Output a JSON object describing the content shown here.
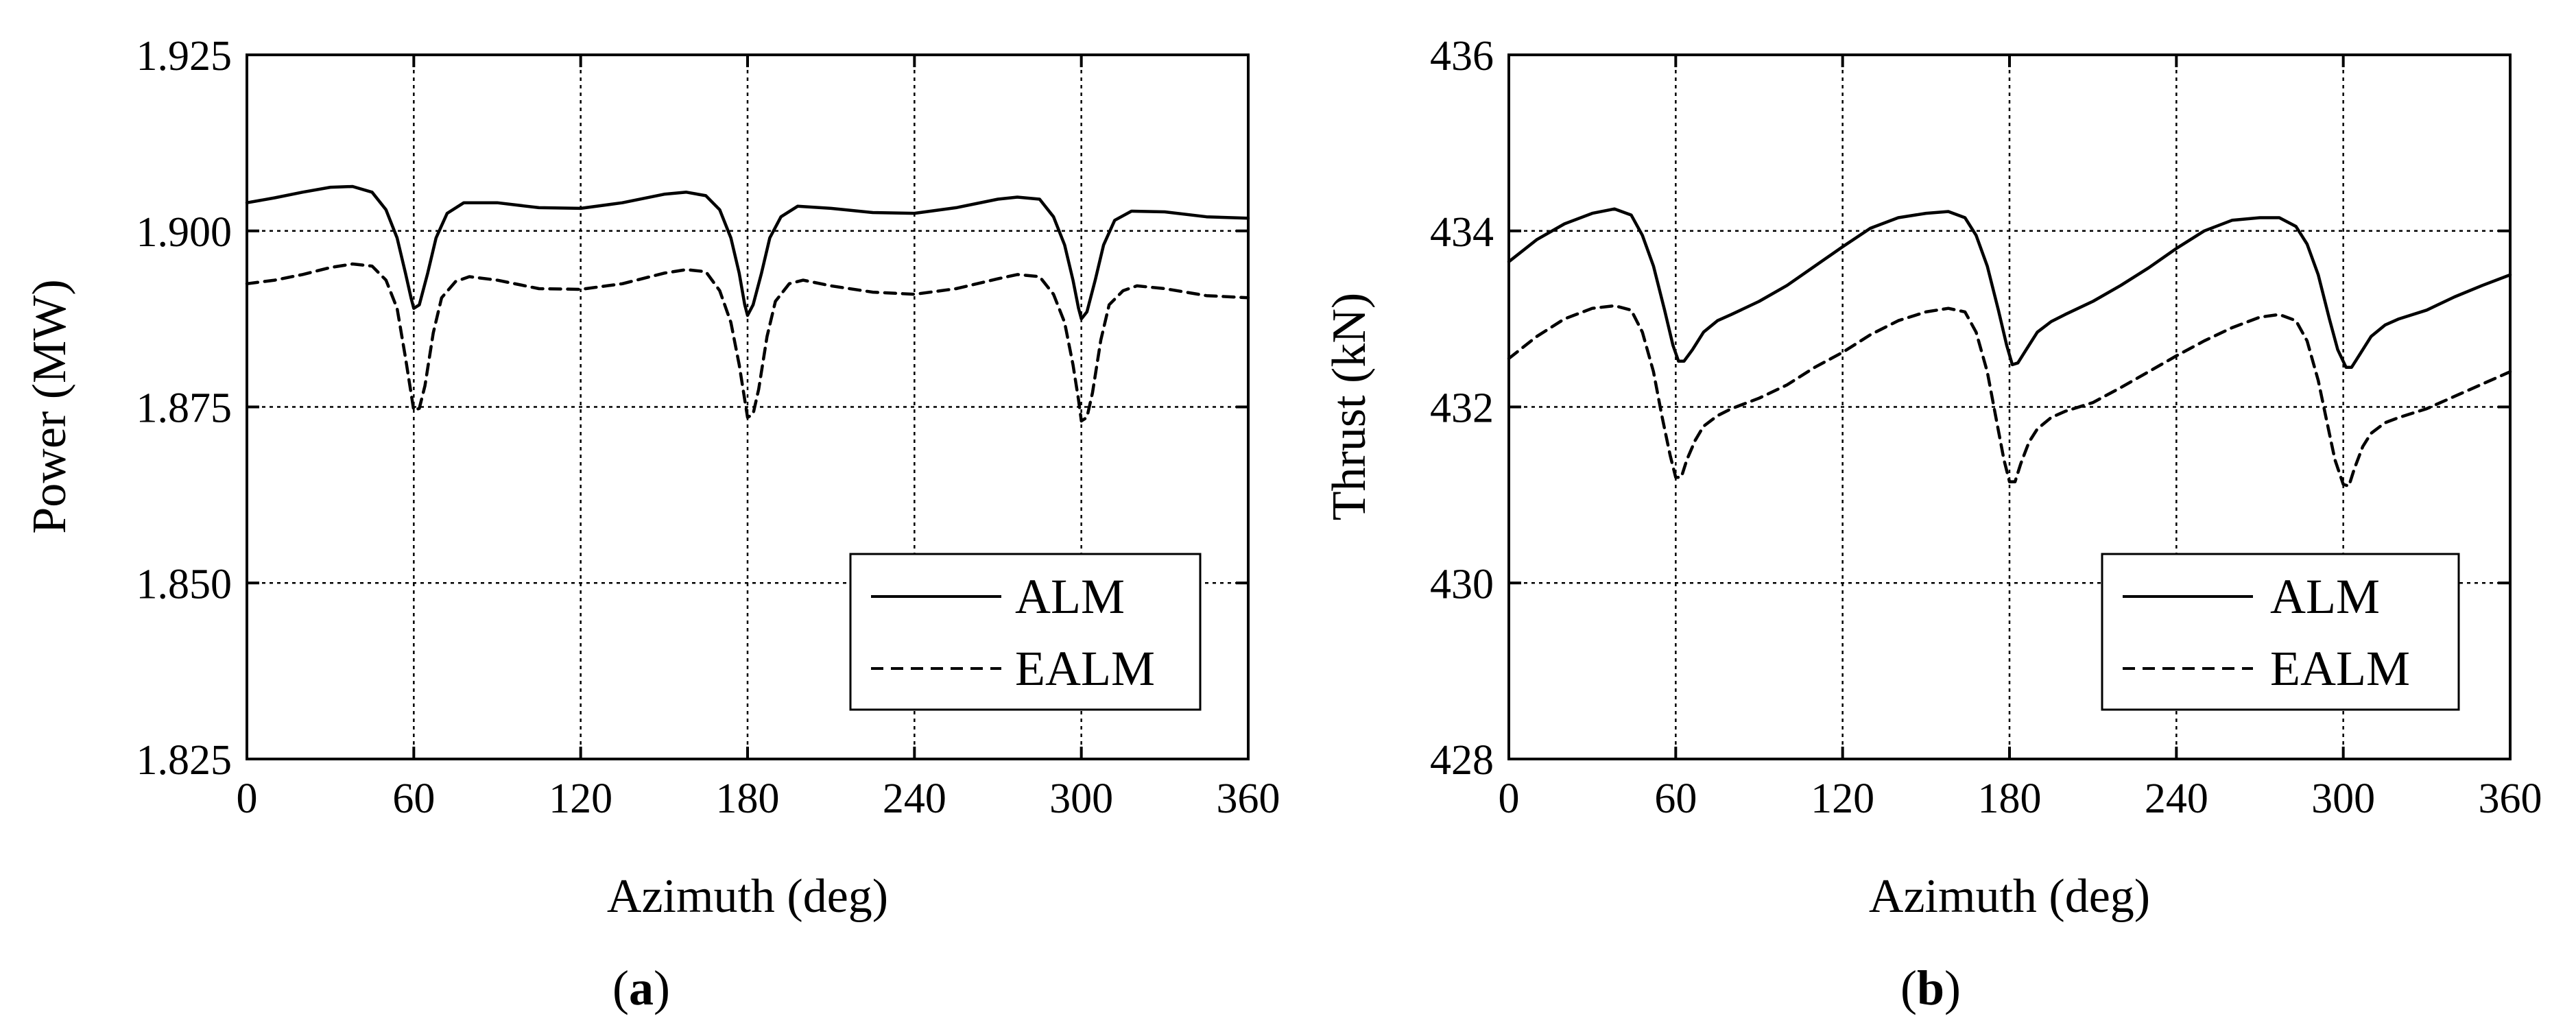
{
  "chart_data": [
    {
      "type": "line",
      "panel_label": "a",
      "title": "",
      "xlabel": "Azimuth (deg)",
      "ylabel": "Power (MW)",
      "xlim": [
        0,
        360
      ],
      "ylim": [
        1.825,
        1.925
      ],
      "xticks": [
        0,
        60,
        120,
        180,
        240,
        300,
        360
      ],
      "xtick_labels": [
        "0",
        "60",
        "120",
        "180",
        "240",
        "300",
        "360"
      ],
      "yticks": [
        1.825,
        1.85,
        1.875,
        1.9,
        1.925
      ],
      "ytick_labels": [
        "1.825",
        "1.850",
        "1.875",
        "1.900",
        "1.925"
      ],
      "grid": true,
      "legend_position": "bottom-right",
      "series": [
        {
          "name": "ALM",
          "style": "solid",
          "x": [
            0,
            10,
            20,
            30,
            38,
            45,
            50,
            54,
            57,
            59,
            60,
            62,
            65,
            68,
            72,
            78,
            90,
            105,
            120,
            135,
            150,
            158,
            165,
            170,
            174,
            177,
            179,
            180,
            182,
            185,
            188,
            192,
            198,
            210,
            225,
            240,
            255,
            270,
            277,
            285,
            290,
            294,
            297,
            299,
            300,
            302,
            305,
            308,
            312,
            318,
            330,
            345,
            360
          ],
          "values": [
            1.904,
            1.9047,
            1.9055,
            1.9062,
            1.9063,
            1.9055,
            1.903,
            1.899,
            1.894,
            1.8905,
            1.889,
            1.8895,
            1.894,
            1.899,
            1.9025,
            1.904,
            1.904,
            1.9033,
            1.9032,
            1.904,
            1.9052,
            1.9055,
            1.905,
            1.903,
            1.899,
            1.894,
            1.8895,
            1.888,
            1.8895,
            1.894,
            1.899,
            1.902,
            1.9035,
            1.9032,
            1.9026,
            1.9025,
            1.9033,
            1.9045,
            1.9048,
            1.9045,
            1.902,
            1.898,
            1.893,
            1.889,
            1.8875,
            1.8885,
            1.893,
            1.898,
            1.9015,
            1.9028,
            1.9027,
            1.902,
            1.9018
          ]
        },
        {
          "name": "EALM",
          "style": "dashed",
          "x": [
            0,
            10,
            20,
            30,
            38,
            45,
            50,
            54,
            57,
            59,
            60,
            62,
            64,
            67,
            70,
            75,
            80,
            90,
            105,
            120,
            135,
            150,
            158,
            165,
            170,
            174,
            177,
            179,
            180,
            182,
            184,
            187,
            190,
            195,
            200,
            210,
            225,
            240,
            255,
            270,
            277,
            285,
            290,
            294,
            297,
            299,
            300,
            302,
            304,
            307,
            310,
            315,
            320,
            330,
            345,
            360
          ],
          "values": [
            1.8925,
            1.893,
            1.8938,
            1.8948,
            1.8953,
            1.895,
            1.893,
            1.889,
            1.882,
            1.877,
            1.8745,
            1.8748,
            1.878,
            1.8855,
            1.8905,
            1.8928,
            1.8935,
            1.893,
            1.8918,
            1.8917,
            1.8925,
            1.894,
            1.8945,
            1.8942,
            1.8915,
            1.887,
            1.881,
            1.876,
            1.8735,
            1.874,
            1.8775,
            1.885,
            1.89,
            1.8925,
            1.893,
            1.8922,
            1.8913,
            1.891,
            1.8918,
            1.8932,
            1.8938,
            1.8935,
            1.891,
            1.887,
            1.881,
            1.876,
            1.873,
            1.8735,
            1.877,
            1.8845,
            1.8895,
            1.8915,
            1.8922,
            1.8918,
            1.8908,
            1.8905
          ]
        }
      ]
    },
    {
      "type": "line",
      "panel_label": "b",
      "title": "",
      "xlabel": "Azimuth (deg)",
      "ylabel": "Thrust (kN)",
      "xlim": [
        0,
        360
      ],
      "ylim": [
        428,
        436
      ],
      "xticks": [
        0,
        60,
        120,
        180,
        240,
        300,
        360
      ],
      "xtick_labels": [
        "0",
        "60",
        "120",
        "180",
        "240",
        "300",
        "360"
      ],
      "yticks": [
        428,
        430,
        432,
        434,
        436
      ],
      "ytick_labels": [
        "428",
        "430",
        "432",
        "434",
        "436"
      ],
      "grid": true,
      "legend_position": "bottom-right",
      "series": [
        {
          "name": "ALM",
          "style": "solid",
          "x": [
            0,
            10,
            20,
            30,
            38,
            44,
            48,
            52,
            56,
            59,
            61,
            63,
            66,
            70,
            75,
            80,
            90,
            100,
            110,
            120,
            130,
            140,
            150,
            158,
            164,
            168,
            172,
            176,
            179,
            181,
            183,
            186,
            190,
            195,
            200,
            210,
            220,
            230,
            240,
            250,
            260,
            270,
            277,
            283,
            287,
            291,
            295,
            298,
            301,
            303,
            306,
            310,
            315,
            320,
            330,
            340,
            350,
            360
          ],
          "values": [
            433.65,
            433.9,
            434.08,
            434.2,
            434.25,
            434.18,
            433.95,
            433.6,
            433.1,
            432.7,
            432.52,
            432.52,
            432.65,
            432.85,
            432.98,
            433.05,
            433.2,
            433.38,
            433.6,
            433.82,
            434.03,
            434.15,
            434.2,
            434.22,
            434.15,
            433.95,
            433.6,
            433.1,
            432.7,
            432.48,
            432.5,
            432.65,
            432.85,
            432.97,
            433.05,
            433.2,
            433.38,
            433.58,
            433.8,
            434.0,
            434.12,
            434.15,
            434.15,
            434.05,
            433.85,
            433.5,
            433.0,
            432.65,
            432.45,
            432.45,
            432.6,
            432.8,
            432.93,
            433.0,
            433.1,
            433.25,
            433.38,
            433.5
          ]
        },
        {
          "name": "EALM",
          "style": "dashed",
          "x": [
            0,
            10,
            20,
            30,
            38,
            44,
            48,
            52,
            55,
            58,
            60,
            62,
            64,
            67,
            70,
            75,
            80,
            90,
            100,
            110,
            120,
            130,
            140,
            150,
            158,
            164,
            168,
            172,
            175,
            178,
            180,
            182,
            184,
            187,
            190,
            195,
            200,
            210,
            220,
            230,
            240,
            250,
            260,
            270,
            277,
            283,
            287,
            291,
            294,
            297,
            300,
            302,
            304,
            307,
            310,
            315,
            320,
            330,
            340,
            350,
            360
          ],
          "values": [
            432.55,
            432.8,
            433.0,
            433.12,
            433.15,
            433.1,
            432.85,
            432.4,
            431.9,
            431.45,
            431.2,
            431.2,
            431.4,
            431.62,
            431.78,
            431.9,
            431.98,
            432.1,
            432.25,
            432.45,
            432.62,
            432.82,
            432.98,
            433.08,
            433.12,
            433.08,
            432.85,
            432.4,
            431.9,
            431.4,
            431.15,
            431.15,
            431.35,
            431.6,
            431.75,
            431.88,
            431.95,
            432.05,
            432.22,
            432.4,
            432.58,
            432.75,
            432.9,
            433.02,
            433.05,
            432.98,
            432.75,
            432.3,
            431.85,
            431.4,
            431.12,
            431.1,
            431.3,
            431.55,
            431.7,
            431.82,
            431.88,
            431.98,
            432.12,
            432.26,
            432.4
          ]
        }
      ]
    }
  ]
}
